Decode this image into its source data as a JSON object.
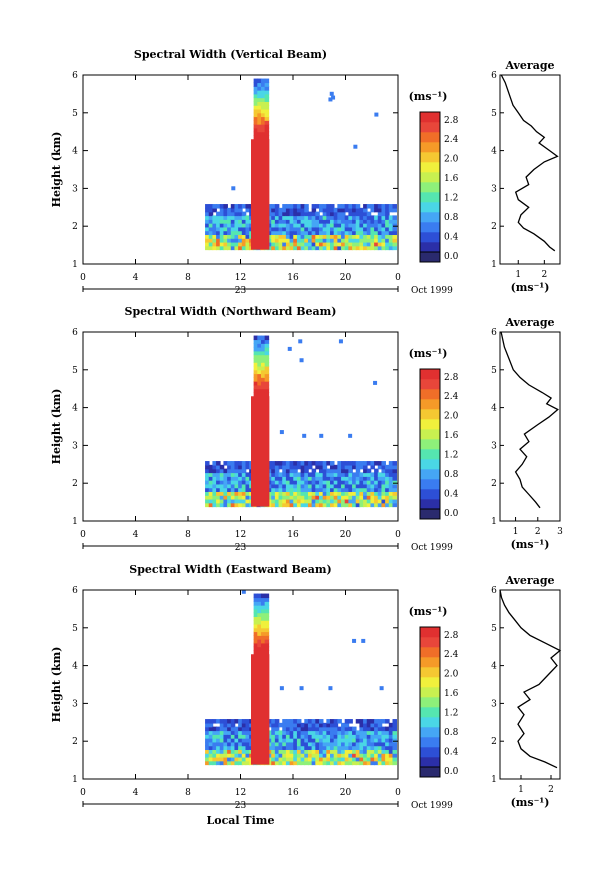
{
  "colorbar": {
    "unit_label": "(ms⁻¹)",
    "ticks": [
      "0.0",
      "0.4",
      "0.8",
      "1.2",
      "1.6",
      "2.0",
      "2.4",
      "2.8"
    ],
    "colors": [
      "#2a2a6e",
      "#2b2fa8",
      "#2d4fd6",
      "#3a7cf0",
      "#45a6f5",
      "#4ad6e6",
      "#55e6b0",
      "#8ef07a",
      "#c8f050",
      "#f0f03c",
      "#f5c832",
      "#f59a28",
      "#f06e28",
      "#e8463a",
      "#e03030"
    ]
  },
  "panels": [
    {
      "title": "Spectral Width (Vertical Beam)",
      "ylabel": "Height (km)",
      "yticks": [
        "1",
        "2",
        "3",
        "4",
        "5",
        "6"
      ],
      "xticks": [
        "0",
        "4",
        "8",
        "12",
        "16",
        "20",
        "0"
      ],
      "date_day": "23",
      "date_label": "Oct 1999",
      "bottom_label": "",
      "avg": {
        "title": "Average",
        "xticks": [
          "1",
          "2"
        ],
        "xunit": "(ms⁻¹)",
        "xlim": [
          0.3,
          2.6
        ],
        "profile": [
          [
            2.4,
            1.35
          ],
          [
            2.2,
            1.45
          ],
          [
            2.0,
            1.6
          ],
          [
            1.6,
            1.8
          ],
          [
            1.2,
            1.95
          ],
          [
            1.0,
            2.1
          ],
          [
            1.1,
            2.3
          ],
          [
            1.4,
            2.5
          ],
          [
            1.0,
            2.7
          ],
          [
            0.9,
            2.9
          ],
          [
            1.4,
            3.1
          ],
          [
            1.3,
            3.3
          ],
          [
            1.6,
            3.5
          ],
          [
            2.0,
            3.7
          ],
          [
            2.5,
            3.85
          ],
          [
            2.2,
            4.0
          ],
          [
            1.8,
            4.2
          ],
          [
            2.0,
            4.35
          ],
          [
            1.7,
            4.5
          ],
          [
            1.5,
            4.65
          ],
          [
            1.2,
            4.8
          ],
          [
            1.0,
            5.0
          ],
          [
            0.8,
            5.2
          ],
          [
            0.65,
            5.5
          ],
          [
            0.5,
            5.8
          ],
          [
            0.35,
            6.0
          ]
        ]
      }
    },
    {
      "title": "Spectral Width (Northward Beam)",
      "ylabel": "Height (km)",
      "yticks": [
        "1",
        "2",
        "3",
        "4",
        "5",
        "6"
      ],
      "xticks": [
        "0",
        "4",
        "8",
        "12",
        "16",
        "20",
        "0"
      ],
      "date_day": "23",
      "date_label": "Oct 1999",
      "bottom_label": "",
      "avg": {
        "title": "Average",
        "xticks": [
          "1",
          "2",
          "3"
        ],
        "xunit": "(ms⁻¹)",
        "xlim": [
          0.3,
          3.0
        ],
        "profile": [
          [
            2.1,
            1.35
          ],
          [
            1.9,
            1.5
          ],
          [
            1.6,
            1.7
          ],
          [
            1.3,
            1.9
          ],
          [
            1.2,
            2.1
          ],
          [
            1.0,
            2.3
          ],
          [
            1.3,
            2.5
          ],
          [
            1.5,
            2.7
          ],
          [
            1.2,
            2.9
          ],
          [
            1.6,
            3.1
          ],
          [
            1.4,
            3.3
          ],
          [
            2.0,
            3.55
          ],
          [
            2.5,
            3.75
          ],
          [
            2.9,
            3.95
          ],
          [
            2.4,
            4.1
          ],
          [
            2.6,
            4.25
          ],
          [
            2.2,
            4.4
          ],
          [
            1.6,
            4.6
          ],
          [
            1.2,
            4.8
          ],
          [
            0.9,
            5.0
          ],
          [
            0.7,
            5.3
          ],
          [
            0.5,
            5.6
          ],
          [
            0.35,
            6.0
          ]
        ]
      }
    },
    {
      "title": "Spectral Width (Eastward Beam)",
      "ylabel": "Height (km)",
      "yticks": [
        "1",
        "2",
        "3",
        "4",
        "5",
        "6"
      ],
      "xticks": [
        "0",
        "4",
        "8",
        "12",
        "16",
        "20",
        "0"
      ],
      "date_day": "23",
      "date_label": "Oct 1999",
      "bottom_label": "Local Time",
      "avg": {
        "title": "Average",
        "xticks": [
          "1",
          "2"
        ],
        "xunit": "(ms⁻¹)",
        "xlim": [
          0.3,
          2.3
        ],
        "profile": [
          [
            2.2,
            1.3
          ],
          [
            1.8,
            1.45
          ],
          [
            1.3,
            1.6
          ],
          [
            1.0,
            1.8
          ],
          [
            0.9,
            2.0
          ],
          [
            1.1,
            2.2
          ],
          [
            0.9,
            2.45
          ],
          [
            1.1,
            2.7
          ],
          [
            0.9,
            2.9
          ],
          [
            1.3,
            3.1
          ],
          [
            1.1,
            3.3
          ],
          [
            1.6,
            3.5
          ],
          [
            1.9,
            3.75
          ],
          [
            2.2,
            4.0
          ],
          [
            2.0,
            4.2
          ],
          [
            2.3,
            4.4
          ],
          [
            1.8,
            4.6
          ],
          [
            1.3,
            4.8
          ],
          [
            1.0,
            5.0
          ],
          [
            0.8,
            5.2
          ],
          [
            0.6,
            5.4
          ],
          [
            0.45,
            5.6
          ],
          [
            0.35,
            5.8
          ],
          [
            0.3,
            6.0
          ]
        ]
      }
    }
  ],
  "chart_data": {
    "type": "heatmap",
    "xlabel": "Local Time",
    "ylabel": "Height (km)",
    "xlim": [
      0,
      24
    ],
    "ylim": [
      1,
      6
    ],
    "colorbar_range": [
      0.0,
      3.0
    ],
    "colorbar_unit": "(ms⁻¹)",
    "panels": [
      "Spectral Width (Vertical Beam)",
      "Spectral Width (Northward Beam)",
      "Spectral Width (Eastward Beam)"
    ]
  }
}
